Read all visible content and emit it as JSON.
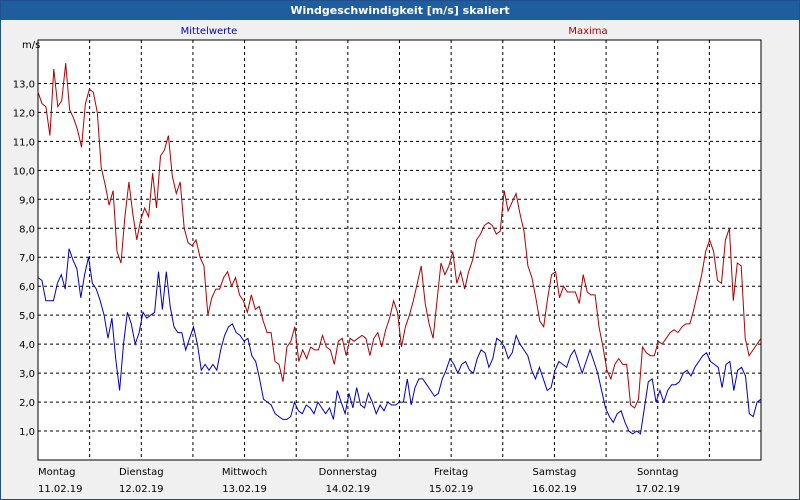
{
  "window": {
    "title": "Windgeschwindigkeit [m/s] skaliert"
  },
  "chart_data": {
    "type": "line",
    "ylabel": "m/s",
    "ylim": [
      0,
      14.5
    ],
    "yticks": [
      "1,0",
      "2,0",
      "3,0",
      "4,0",
      "5,0",
      "6,0",
      "7,0",
      "8,0",
      "9,0",
      "10,0",
      "11,0",
      "12,0",
      "13,0"
    ],
    "ytick_values": [
      1,
      2,
      3,
      4,
      5,
      6,
      7,
      8,
      9,
      10,
      11,
      12,
      13
    ],
    "xlim": [
      0,
      7
    ],
    "days": [
      {
        "weekday": "Montag",
        "date": "11.02.19"
      },
      {
        "weekday": "Dienstag",
        "date": "12.02.19"
      },
      {
        "weekday": "Mittwoch",
        "date": "13.02.19"
      },
      {
        "weekday": "Donnerstag",
        "date": "14.02.19"
      },
      {
        "weekday": "Freitag",
        "date": "15.02.19"
      },
      {
        "weekday": "Samstag",
        "date": "16.02.19"
      },
      {
        "weekday": "Sonntag",
        "date": "17.02.19"
      }
    ],
    "grid": true,
    "series": [
      {
        "name": "Mittelwerte",
        "color": "#0000c0",
        "values": [
          6.3,
          6.2,
          5.5,
          5.5,
          5.5,
          6.1,
          6.4,
          5.9,
          7.3,
          6.9,
          6.6,
          5.6,
          6.4,
          7.0,
          6.1,
          5.9,
          5.5,
          5.0,
          4.2,
          4.9,
          3.5,
          2.4,
          4.0,
          5.1,
          4.7,
          4.0,
          4.4,
          5.1,
          4.9,
          5.0,
          5.1,
          6.5,
          5.2,
          6.5,
          5.3,
          4.6,
          4.4,
          4.4,
          3.8,
          4.2,
          4.6,
          4.0,
          3.1,
          3.3,
          3.1,
          3.3,
          3.1,
          3.8,
          4.3,
          4.6,
          4.7,
          4.4,
          4.3,
          4.1,
          4.2,
          3.6,
          3.4,
          2.8,
          2.1,
          2.0,
          1.9,
          1.6,
          1.5,
          1.4,
          1.4,
          1.5,
          2.0,
          1.7,
          1.6,
          1.9,
          1.8,
          1.6,
          2.0,
          1.8,
          1.6,
          1.8,
          1.4,
          2.4,
          2.0,
          1.6,
          2.3,
          1.8,
          2.5,
          1.9,
          1.8,
          2.3,
          2.0,
          1.6,
          1.9,
          1.7,
          2.0,
          1.9,
          1.9,
          2.0,
          2.0,
          2.8,
          1.9,
          2.5,
          2.8,
          2.8,
          2.6,
          2.4,
          2.2,
          2.3,
          2.8,
          3.1,
          3.5,
          3.3,
          3.0,
          3.3,
          3.4,
          3.1,
          3.0,
          3.5,
          3.8,
          3.7,
          3.2,
          3.5,
          4.2,
          4.1,
          3.9,
          3.5,
          3.7,
          4.3,
          4.0,
          3.8,
          3.6,
          3.1,
          2.8,
          3.2,
          2.8,
          2.4,
          2.5,
          3.1,
          3.4,
          3.3,
          3.2,
          3.6,
          3.8,
          3.4,
          3.0,
          3.4,
          3.8,
          3.4,
          3.0,
          2.4,
          1.8,
          1.5,
          1.3,
          1.6,
          1.7,
          1.3,
          1.0,
          0.9,
          1.0,
          0.9,
          1.8,
          2.7,
          2.8,
          2.0,
          2.4,
          2.0,
          2.4,
          2.6,
          2.6,
          2.7,
          3.0,
          3.1,
          2.9,
          3.2,
          3.4,
          3.6,
          3.7,
          3.4,
          3.3,
          3.2,
          2.5,
          3.3,
          3.4,
          2.4,
          3.1,
          3.2,
          2.9,
          1.6,
          1.5,
          2.0,
          2.1
        ]
      },
      {
        "name": "Maxima",
        "color": "#b00000",
        "values": [
          12.7,
          12.3,
          12.2,
          11.2,
          13.5,
          12.2,
          12.4,
          13.7,
          12.1,
          11.8,
          11.4,
          10.8,
          12.3,
          12.8,
          12.7,
          12.0,
          10.1,
          9.5,
          8.8,
          9.3,
          7.2,
          6.8,
          8.4,
          9.6,
          8.5,
          7.6,
          8.3,
          8.7,
          8.4,
          9.9,
          8.7,
          10.5,
          10.7,
          11.2,
          9.8,
          9.2,
          9.6,
          8.0,
          7.5,
          7.4,
          7.6,
          7.0,
          6.7,
          5.0,
          5.6,
          5.9,
          5.9,
          6.3,
          6.5,
          6.0,
          6.3,
          5.7,
          5.5,
          5.1,
          5.7,
          5.2,
          5.3,
          4.8,
          4.4,
          4.4,
          3.4,
          3.3,
          2.7,
          3.9,
          4.1,
          4.6,
          3.4,
          3.8,
          3.5,
          3.9,
          3.8,
          3.8,
          4.3,
          3.9,
          3.8,
          3.3,
          4.1,
          4.2,
          3.6,
          4.2,
          4.1,
          4.2,
          4.3,
          4.2,
          3.6,
          4.2,
          4.4,
          3.9,
          4.5,
          4.9,
          5.5,
          5.1,
          3.9,
          4.6,
          5.0,
          5.5,
          6.1,
          6.7,
          5.4,
          4.7,
          4.2,
          5.5,
          6.8,
          6.4,
          6.7,
          7.2,
          6.1,
          6.5,
          5.9,
          6.5,
          6.9,
          7.6,
          7.8,
          8.1,
          8.2,
          8.1,
          7.8,
          7.9,
          9.3,
          8.6,
          8.9,
          9.2,
          8.5,
          7.9,
          6.7,
          6.3,
          5.6,
          4.8,
          4.6,
          5.6,
          6.4,
          6.5,
          5.6,
          6.0,
          5.8,
          5.8,
          5.8,
          5.4,
          6.4,
          5.8,
          5.7,
          5.7,
          4.6,
          3.9,
          3.1,
          2.8,
          3.3,
          3.5,
          3.3,
          3.3,
          1.9,
          1.8,
          2.1,
          3.9,
          3.7,
          3.6,
          3.6,
          4.1,
          4.0,
          4.2,
          4.4,
          4.5,
          4.4,
          4.6,
          4.7,
          4.7,
          5.2,
          5.8,
          6.4,
          7.2,
          7.6,
          7.2,
          6.2,
          6.1,
          7.6,
          8.0,
          5.5,
          6.8,
          6.7,
          4.2,
          3.6,
          3.8,
          4.0,
          4.2
        ]
      }
    ]
  }
}
